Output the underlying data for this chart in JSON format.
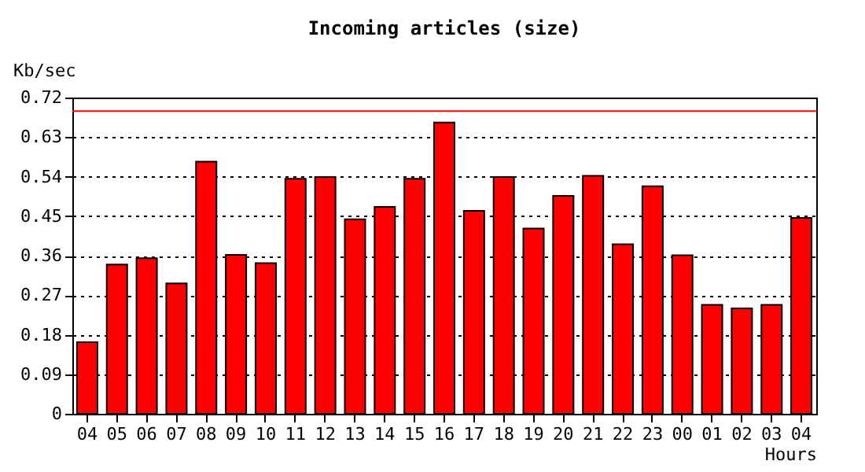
{
  "chart_data": {
    "type": "bar",
    "title": "Incoming articles (size)",
    "xlabel": "Hours",
    "ylabel": "Kb/sec",
    "categories": [
      "04",
      "05",
      "06",
      "07",
      "08",
      "09",
      "10",
      "11",
      "12",
      "13",
      "14",
      "15",
      "16",
      "17",
      "18",
      "19",
      "20",
      "21",
      "22",
      "23",
      "00",
      "01",
      "02",
      "03",
      "04"
    ],
    "series": [
      {
        "color": "#ff0000",
        "values": [
          0.163,
          0.34,
          0.354,
          0.297,
          0.574,
          0.362,
          0.343,
          0.535,
          0.539,
          0.443,
          0.471,
          0.535,
          0.663,
          0.462,
          0.539,
          0.422,
          0.496,
          0.542,
          0.386,
          0.518,
          0.361,
          0.248,
          0.24,
          0.248,
          0.446
        ]
      }
    ],
    "ylim": [
      0,
      0.72
    ],
    "yticks": [
      0,
      0.09,
      0.18,
      0.27,
      0.36,
      0.45,
      0.54,
      0.63,
      0.72
    ],
    "ref_lines": [
      {
        "axis": "y",
        "value": 0.689,
        "color": "#ff0000"
      }
    ],
    "grid": "y"
  }
}
